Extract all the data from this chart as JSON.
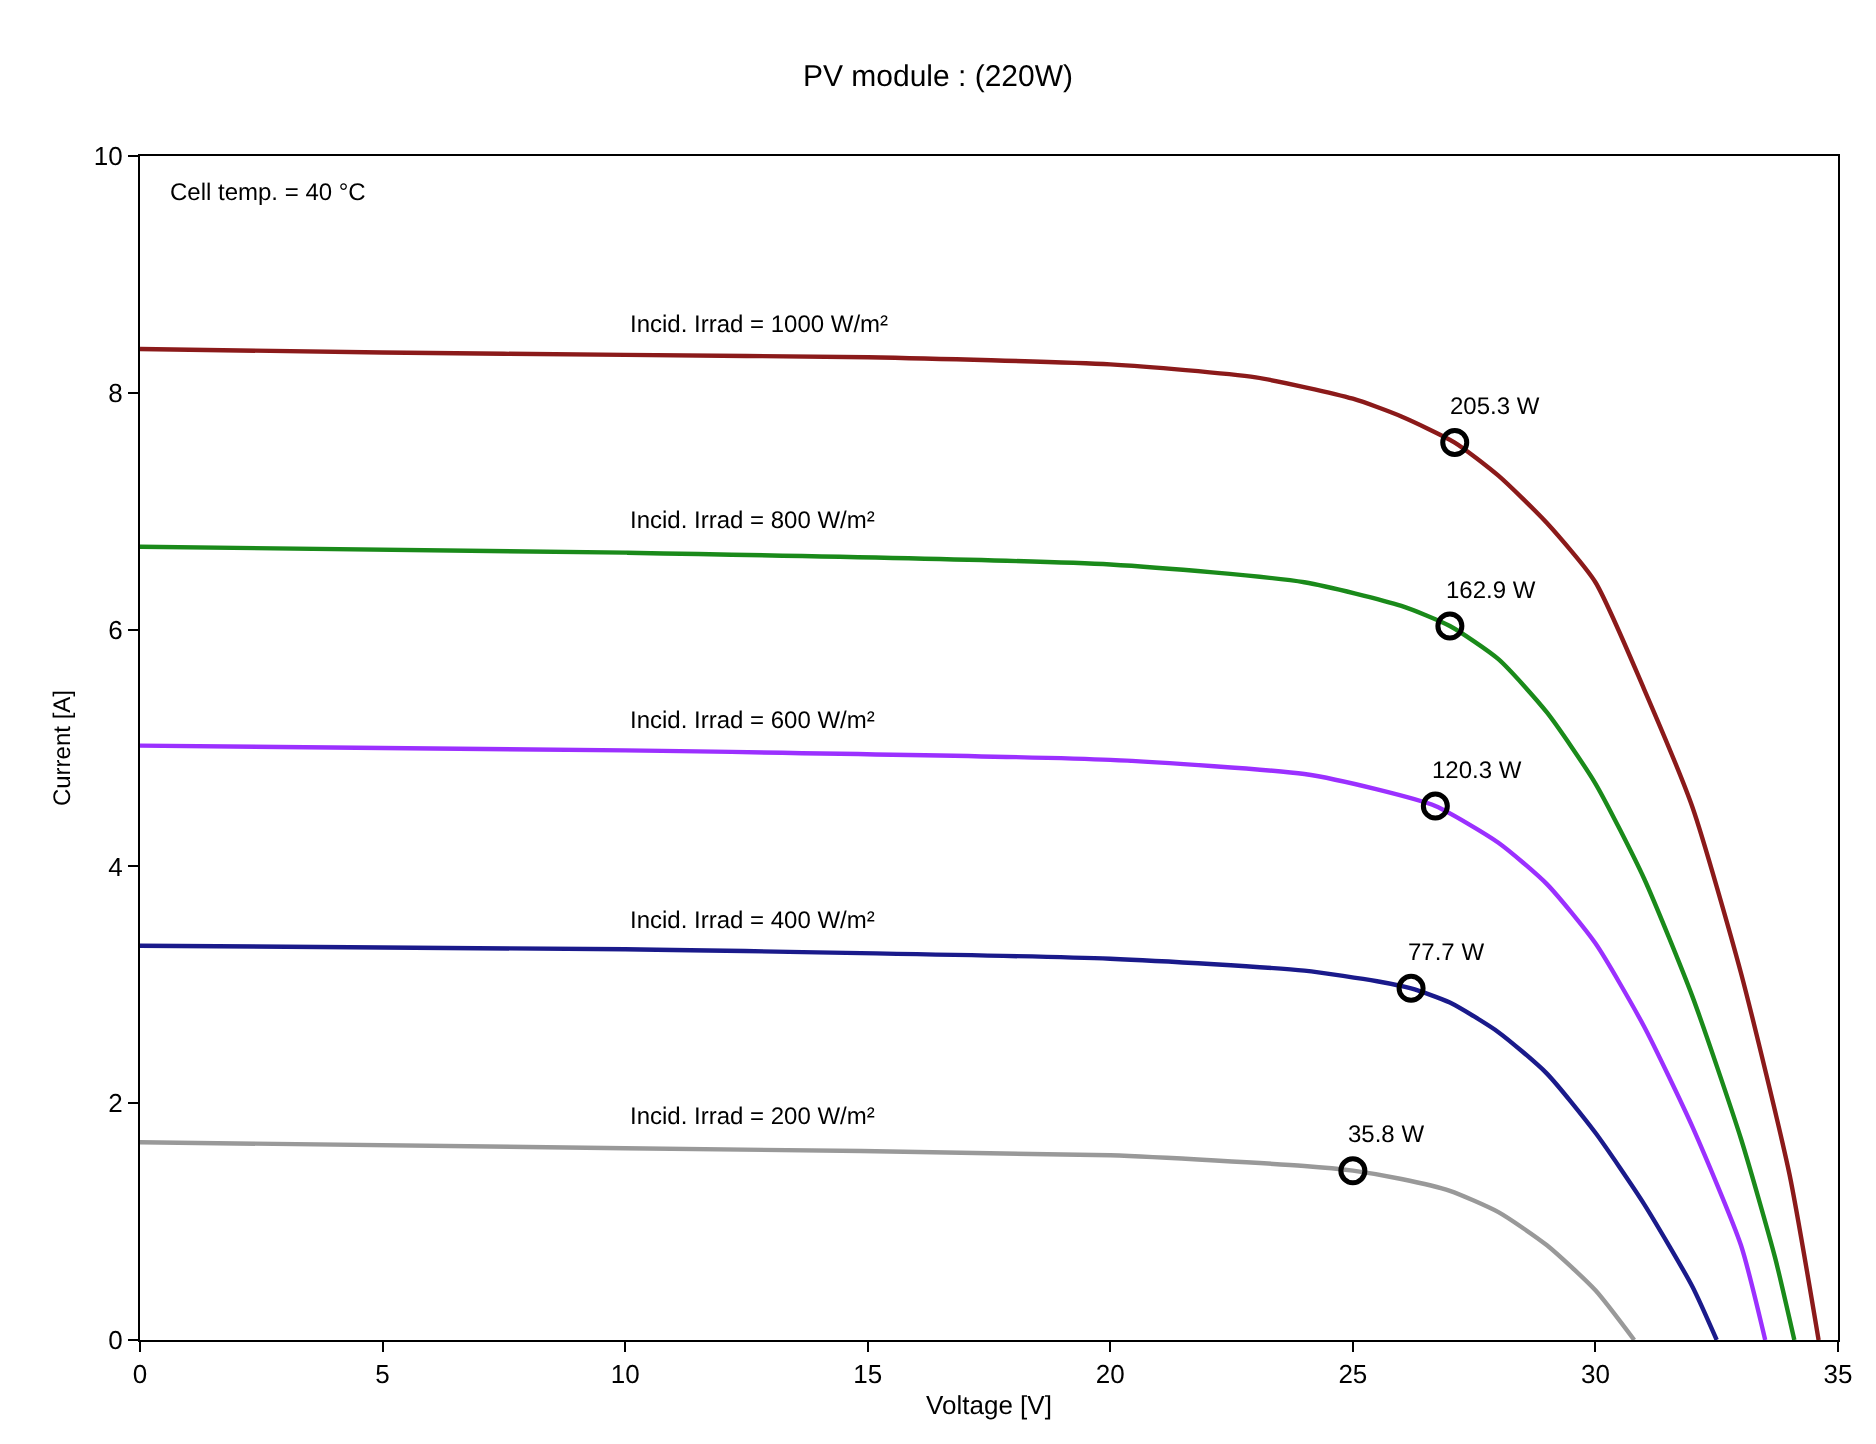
{
  "chart_data": {
    "type": "line",
    "title": "PV module : (220W)",
    "xlabel": "Voltage [V]",
    "ylabel": "Current [A]",
    "xlim": [
      0,
      35
    ],
    "xticks": [
      0,
      5,
      10,
      15,
      20,
      25,
      30,
      35
    ],
    "ylim": [
      0,
      10
    ],
    "yticks": [
      0,
      2,
      4,
      6,
      8,
      10
    ],
    "legend": false,
    "marker": "none",
    "line_style": "solid",
    "annotations": [
      "Cell temp. = 40 °C",
      {
        "text": "205.3 W",
        "x": 27.1,
        "y": 7.58
      },
      {
        "text": "162.9 W",
        "x": 27.0,
        "y": 6.03
      },
      {
        "text": "120.3 W",
        "x": 26.7,
        "y": 4.51
      },
      {
        "text": "77.7 W",
        "x": 26.2,
        "y": 2.97
      },
      {
        "text": "35.8 W",
        "x": 25.0,
        "y": 1.43
      }
    ],
    "series": [
      {
        "name": "Incid. Irrad = 1000 W/m²",
        "color": "#8b1a1a",
        "x": [
          0,
          5,
          10,
          15,
          20,
          23,
          25,
          26,
          27.1,
          28,
          29,
          30,
          31,
          32,
          33,
          34,
          34.6
        ],
        "values": [
          8.37,
          8.34,
          8.32,
          8.3,
          8.24,
          8.13,
          7.95,
          7.8,
          7.58,
          7.3,
          6.9,
          6.4,
          5.5,
          4.5,
          3.1,
          1.4,
          0
        ]
      },
      {
        "name": "Incid. Irrad = 800 W/m²",
        "color": "#1a8a1a",
        "x": [
          0,
          10,
          20,
          24,
          26,
          27,
          28,
          29,
          30,
          31,
          32,
          33,
          33.7,
          34.1
        ],
        "values": [
          6.7,
          6.65,
          6.55,
          6.4,
          6.2,
          6.03,
          5.75,
          5.3,
          4.7,
          3.9,
          2.9,
          1.7,
          0.7,
          0
        ]
      },
      {
        "name": "Incid. Irrad = 600 W/m²",
        "color": "#9b30ff",
        "x": [
          0,
          10,
          20,
          24,
          25.5,
          26.7,
          28,
          29,
          30,
          31,
          32,
          33,
          33.5
        ],
        "values": [
          5.02,
          4.98,
          4.9,
          4.78,
          4.65,
          4.51,
          4.2,
          3.85,
          3.35,
          2.65,
          1.8,
          0.8,
          0
        ]
      },
      {
        "name": "Incid. Irrad = 400 W/m²",
        "color": "#1a1a8b",
        "x": [
          0,
          10,
          20,
          24,
          25.5,
          26.2,
          27,
          28,
          29,
          30,
          31,
          32,
          32.5
        ],
        "values": [
          3.33,
          3.3,
          3.22,
          3.12,
          3.03,
          2.97,
          2.85,
          2.6,
          2.25,
          1.75,
          1.15,
          0.45,
          0
        ]
      },
      {
        "name": "Incid. Irrad = 200 W/m²",
        "color": "#999999",
        "x": [
          0,
          10,
          20,
          24,
          25,
          26,
          27,
          28,
          29,
          30,
          30.8
        ],
        "values": [
          1.67,
          1.62,
          1.56,
          1.47,
          1.43,
          1.36,
          1.26,
          1.08,
          0.8,
          0.42,
          0
        ]
      },
      {
        "type": "scatter",
        "marker": "circle",
        "color": "#000000",
        "x": [
          27.1,
          27.0,
          26.7,
          26.2,
          25.0
        ],
        "values": [
          7.58,
          6.03,
          4.51,
          2.97,
          1.43
        ]
      }
    ]
  }
}
